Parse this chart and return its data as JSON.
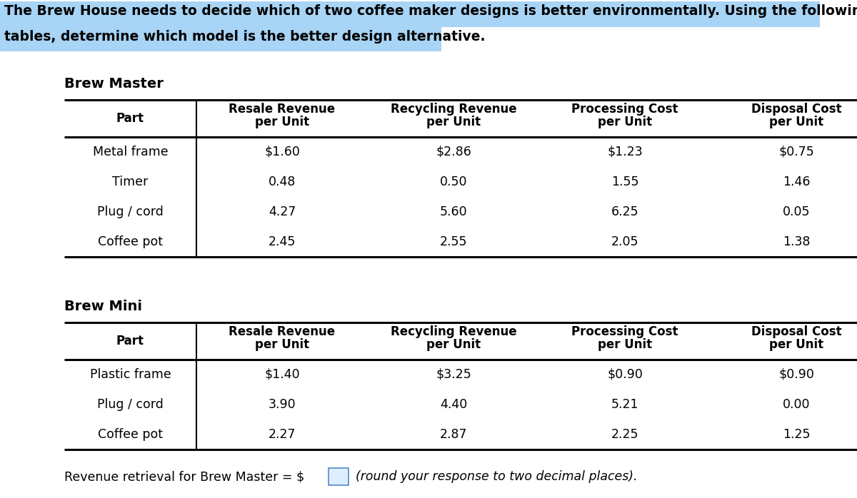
{
  "title_line1": "The Brew House needs to decide which of two coffee maker designs is better environmentally. Using the following",
  "title_line2": "tables, determine which model is the better design alternative.",
  "title_bg_color": "#a8d4f5",
  "title_font_size": 13.5,
  "brew_master_label": "Brew Master",
  "brew_mini_label": "Brew Mini",
  "col_headers_line1": [
    "Resale Revenue",
    "Recycling Revenue",
    "Processing Cost",
    "Disposal Cost"
  ],
  "col_headers_line2": [
    "per Unit",
    "per Unit",
    "per Unit",
    "per Unit"
  ],
  "part_header": "Part",
  "brew_master_parts": [
    "Metal frame",
    "Timer",
    "Plug / cord",
    "Coffee pot"
  ],
  "brew_master_resale": [
    "$1.60",
    "0.48",
    "4.27",
    "2.45"
  ],
  "brew_master_recycling": [
    "$2.86",
    "0.50",
    "5.60",
    "2.55"
  ],
  "brew_master_processing": [
    "$1.23",
    "1.55",
    "6.25",
    "2.05"
  ],
  "brew_master_disposal": [
    "$0.75",
    "1.46",
    "0.05",
    "1.38"
  ],
  "brew_mini_parts": [
    "Plastic frame",
    "Plug / cord",
    "Coffee pot"
  ],
  "brew_mini_resale": [
    "$1.40",
    "3.90",
    "2.27"
  ],
  "brew_mini_recycling": [
    "$3.25",
    "4.40",
    "2.87"
  ],
  "brew_mini_processing": [
    "$0.90",
    "5.21",
    "2.25"
  ],
  "brew_mini_disposal": [
    "$0.90",
    "0.00",
    "1.25"
  ],
  "footer_prefix": "Revenue retrieval for Brew Master = $",
  "footer_suffix": "  (round your response to two decimal places).",
  "bg_color": "#ffffff",
  "line_color": "#000000",
  "header_font_size": 12.0,
  "data_font_size": 12.5,
  "label_font_size": 14.0
}
